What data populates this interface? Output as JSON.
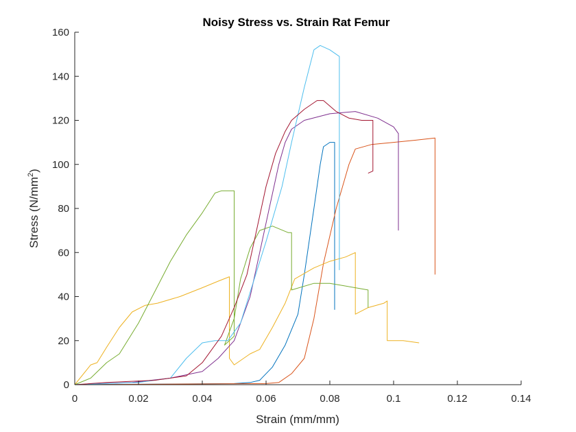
{
  "chart_data": {
    "type": "line",
    "title": "Noisy Stress vs. Strain Rat Femur",
    "xlabel": "Strain (mm/mm)",
    "ylabel_main": "Stress (N/mm",
    "ylabel_sup": "2",
    "ylabel_end": ")",
    "xlim": [
      0,
      0.14
    ],
    "ylim": [
      0,
      160
    ],
    "xticks": [
      0,
      0.02,
      0.04,
      0.06,
      0.08,
      0.1,
      0.12,
      0.14
    ],
    "xtick_labels": [
      "0",
      "0.02",
      "0.04",
      "0.06",
      "0.08",
      "0.1",
      "0.12",
      "0.14"
    ],
    "yticks": [
      0,
      20,
      40,
      60,
      80,
      100,
      120,
      140,
      160
    ],
    "ytick_labels": [
      "0",
      "20",
      "40",
      "60",
      "80",
      "100",
      "120",
      "140",
      "160"
    ],
    "grid": false,
    "series": [
      {
        "color": "#0072BD",
        "points": [
          [
            0.0,
            0
          ],
          [
            0.05,
            0.5
          ],
          [
            0.055,
            1
          ],
          [
            0.058,
            2
          ],
          [
            0.062,
            8
          ],
          [
            0.066,
            18
          ],
          [
            0.07,
            32
          ],
          [
            0.072,
            50
          ],
          [
            0.075,
            80
          ],
          [
            0.077,
            100
          ],
          [
            0.078,
            108
          ],
          [
            0.08,
            110
          ],
          [
            0.0815,
            110
          ],
          [
            0.0815,
            34
          ]
        ]
      },
      {
        "color": "#D95319",
        "points": [
          [
            0.0,
            0
          ],
          [
            0.06,
            0.5
          ],
          [
            0.064,
            1
          ],
          [
            0.068,
            5
          ],
          [
            0.072,
            12
          ],
          [
            0.075,
            30
          ],
          [
            0.078,
            55
          ],
          [
            0.082,
            80
          ],
          [
            0.086,
            100
          ],
          [
            0.088,
            107
          ],
          [
            0.093,
            109
          ],
          [
            0.1,
            110
          ],
          [
            0.107,
            111
          ],
          [
            0.113,
            112
          ],
          [
            0.113,
            50
          ]
        ]
      },
      {
        "color": "#EDB120",
        "points": [
          [
            0.0,
            0
          ],
          [
            0.005,
            9
          ],
          [
            0.007,
            10
          ],
          [
            0.01,
            17
          ],
          [
            0.014,
            26
          ],
          [
            0.018,
            33
          ],
          [
            0.022,
            36
          ],
          [
            0.026,
            37
          ],
          [
            0.033,
            40
          ],
          [
            0.04,
            44
          ],
          [
            0.045,
            47
          ],
          [
            0.0485,
            49
          ],
          [
            0.0485,
            12
          ],
          [
            0.05,
            9
          ],
          [
            0.055,
            14
          ],
          [
            0.058,
            16
          ],
          [
            0.062,
            26
          ],
          [
            0.066,
            37
          ],
          [
            0.069,
            48
          ],
          [
            0.075,
            53
          ],
          [
            0.08,
            56
          ],
          [
            0.085,
            58
          ],
          [
            0.088,
            60
          ],
          [
            0.088,
            32
          ],
          [
            0.092,
            35
          ],
          [
            0.097,
            37
          ],
          [
            0.098,
            38
          ],
          [
            0.098,
            20
          ],
          [
            0.103,
            20
          ],
          [
            0.108,
            19
          ]
        ]
      },
      {
        "color": "#7E2F8E",
        "points": [
          [
            0.0,
            0
          ],
          [
            0.018,
            1
          ],
          [
            0.03,
            3
          ],
          [
            0.04,
            6
          ],
          [
            0.045,
            12
          ],
          [
            0.05,
            20
          ],
          [
            0.055,
            40
          ],
          [
            0.058,
            60
          ],
          [
            0.061,
            80
          ],
          [
            0.064,
            100
          ],
          [
            0.066,
            110
          ],
          [
            0.068,
            116
          ],
          [
            0.072,
            120
          ],
          [
            0.08,
            123
          ],
          [
            0.088,
            124
          ],
          [
            0.095,
            121
          ],
          [
            0.1,
            117
          ],
          [
            0.1015,
            114
          ],
          [
            0.1015,
            70
          ]
        ]
      },
      {
        "color": "#77AC30",
        "points": [
          [
            0.0,
            0
          ],
          [
            0.005,
            3
          ],
          [
            0.01,
            10
          ],
          [
            0.014,
            14
          ],
          [
            0.02,
            28
          ],
          [
            0.025,
            42
          ],
          [
            0.03,
            56
          ],
          [
            0.035,
            68
          ],
          [
            0.04,
            78
          ],
          [
            0.044,
            87
          ],
          [
            0.046,
            88
          ],
          [
            0.05,
            88
          ],
          [
            0.05,
            22
          ],
          [
            0.047,
            18
          ],
          [
            0.05,
            30
          ],
          [
            0.052,
            48
          ],
          [
            0.055,
            62
          ],
          [
            0.058,
            70
          ],
          [
            0.062,
            72
          ],
          [
            0.067,
            69
          ],
          [
            0.068,
            69
          ],
          [
            0.068,
            43
          ],
          [
            0.075,
            46
          ],
          [
            0.08,
            46
          ],
          [
            0.084,
            45
          ],
          [
            0.088,
            44
          ],
          [
            0.092,
            43
          ],
          [
            0.092,
            35
          ]
        ]
      },
      {
        "color": "#4DBEEE",
        "points": [
          [
            0.0,
            0
          ],
          [
            0.02,
            1
          ],
          [
            0.03,
            3
          ],
          [
            0.035,
            12
          ],
          [
            0.04,
            19
          ],
          [
            0.044,
            20
          ],
          [
            0.048,
            20
          ],
          [
            0.052,
            28
          ],
          [
            0.055,
            42
          ],
          [
            0.06,
            65
          ],
          [
            0.065,
            90
          ],
          [
            0.068,
            110
          ],
          [
            0.072,
            135
          ],
          [
            0.075,
            152
          ],
          [
            0.077,
            154
          ],
          [
            0.08,
            152
          ],
          [
            0.083,
            149
          ],
          [
            0.083,
            52
          ]
        ]
      },
      {
        "color": "#A2142F",
        "points": [
          [
            0.0,
            0
          ],
          [
            0.01,
            1
          ],
          [
            0.025,
            2
          ],
          [
            0.035,
            4
          ],
          [
            0.04,
            10
          ],
          [
            0.046,
            22
          ],
          [
            0.05,
            35
          ],
          [
            0.054,
            50
          ],
          [
            0.057,
            70
          ],
          [
            0.06,
            90
          ],
          [
            0.063,
            105
          ],
          [
            0.066,
            115
          ],
          [
            0.068,
            120
          ],
          [
            0.072,
            125
          ],
          [
            0.076,
            129
          ],
          [
            0.078,
            129
          ],
          [
            0.082,
            124
          ],
          [
            0.086,
            121
          ],
          [
            0.09,
            120
          ],
          [
            0.0935,
            120
          ],
          [
            0.0935,
            97
          ],
          [
            0.092,
            96
          ]
        ]
      }
    ]
  }
}
